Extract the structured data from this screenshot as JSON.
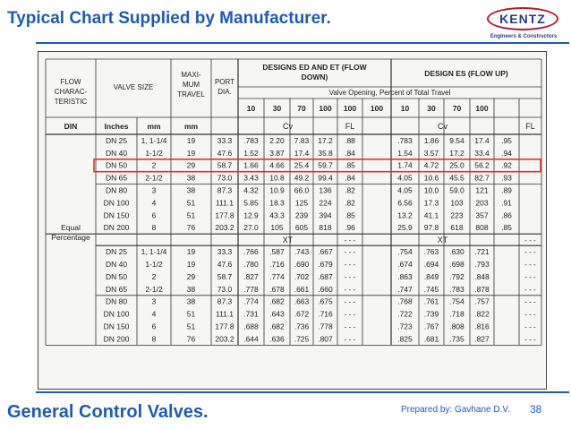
{
  "slide": {
    "title": "Typical Chart Supplied by Manufacturer.",
    "footer_title": "General Control Valves.",
    "prepared_by": "Prepared by: Gavhane D.V.",
    "page_number": "38"
  },
  "logo": {
    "name": "KENTZ",
    "tagline": "Engineers & Constructors",
    "colors": {
      "ring": "#b01e2a",
      "text": "#1f3f8f"
    }
  },
  "colors": {
    "title": "#1f5bb8",
    "highlight": "#d63a2a"
  },
  "table": {
    "headers": {
      "flow": [
        "FLOW",
        "CHARAC-",
        "TERISTIC"
      ],
      "valve_size": "VALVE SIZE",
      "max_travel": [
        "MAXI-",
        "MUM",
        "TRAVEL"
      ],
      "port": [
        "PORT",
        "DIA."
      ],
      "ed_et": [
        "DESIGNS ED AND ET (FLOW",
        "DOWN)"
      ],
      "es": "DESIGN ES (FLOW UP)",
      "opening": "Valve Opening, Percent of Total Travel",
      "openings": [
        "10",
        "30",
        "70",
        "100",
        "100",
        "100",
        "10",
        "30",
        "70",
        "100"
      ],
      "units": [
        "DIN",
        "Inches",
        "mm",
        "mm"
      ],
      "cv": "Cv",
      "fl": "FL",
      "xt": "XT",
      "dash": "- - -"
    },
    "characteristic": [
      "Equal",
      "Percentage"
    ],
    "sizes": [
      [
        "DN 25",
        "1, 1-1/4",
        "19",
        "33.3"
      ],
      [
        "DN 40",
        "1-1/2",
        "19",
        "47.6"
      ],
      [
        "DN 50",
        "2",
        "29",
        "58.7"
      ],
      [
        "DN 65",
        "2-1/2",
        "38",
        "73.0"
      ],
      [
        "DN 80",
        "3",
        "38",
        "87.3"
      ],
      [
        "DN 100",
        "4",
        "51",
        "111.1"
      ],
      [
        "DN 150",
        "6",
        "51",
        "177.8"
      ],
      [
        "DN 200",
        "8",
        "76",
        "203.2"
      ]
    ],
    "cv_rows": [
      [
        ".783",
        "2.20",
        "7.83",
        "17.2",
        ".88",
        ".783",
        "1.86",
        "9.54",
        "17.4",
        ".95"
      ],
      [
        "1.52",
        "3.87",
        "17.4",
        "35.8",
        ".84",
        "1.54",
        "3.57",
        "17.2",
        "33.4",
        ".94"
      ],
      [
        "1.66",
        "4.66",
        "25.4",
        "59.7",
        ".85",
        "1.74",
        "4.72",
        "25.0",
        "56.2",
        ".92"
      ],
      [
        "3.43",
        "10.8",
        "49.2",
        "99.4",
        ".84",
        "4.05",
        "10.6",
        "45.5",
        "82.7",
        ".93"
      ],
      [
        "4.32",
        "10.9",
        "66.0",
        "136",
        ".82",
        "4.05",
        "10.0",
        "59.0",
        "121",
        ".89"
      ],
      [
        "5.85",
        "18.3",
        "125",
        "224",
        ".82",
        "6.56",
        "17.3",
        "103",
        "203",
        ".91"
      ],
      [
        "12.9",
        "43.3",
        "239",
        "394",
        ".85",
        "13.2",
        "41.1",
        "223",
        "357",
        ".86"
      ],
      [
        "27.0",
        "105",
        "605",
        "818",
        ".96",
        "25.9",
        "97.8",
        "618",
        "808",
        ".85"
      ]
    ],
    "xt_rows": [
      [
        ".766",
        ".587",
        ".743",
        ".667",
        ".754",
        ".763",
        ".630",
        ".721"
      ],
      [
        ".780",
        ".716",
        ".690",
        ".679",
        ".674",
        ".694",
        ".698",
        ".793"
      ],
      [
        ".827",
        ".774",
        ".702",
        ".687",
        ".863",
        ".849",
        ".792",
        ".848"
      ],
      [
        ".778",
        ".678",
        ".661",
        ".660",
        ".747",
        ".745",
        ".783",
        ".878"
      ],
      [
        ".774",
        ".682",
        ".663",
        ".675",
        ".768",
        ".761",
        ".754",
        ".757"
      ],
      [
        ".731",
        ".643",
        ".672",
        ".716",
        ".722",
        ".739",
        ".718",
        ".822"
      ],
      [
        ".688",
        ".682",
        ".736",
        ".778",
        ".723",
        ".767",
        ".808",
        ".816"
      ],
      [
        ".644",
        ".636",
        ".725",
        ".807",
        ".825",
        ".681",
        ".735",
        ".827"
      ]
    ]
  }
}
